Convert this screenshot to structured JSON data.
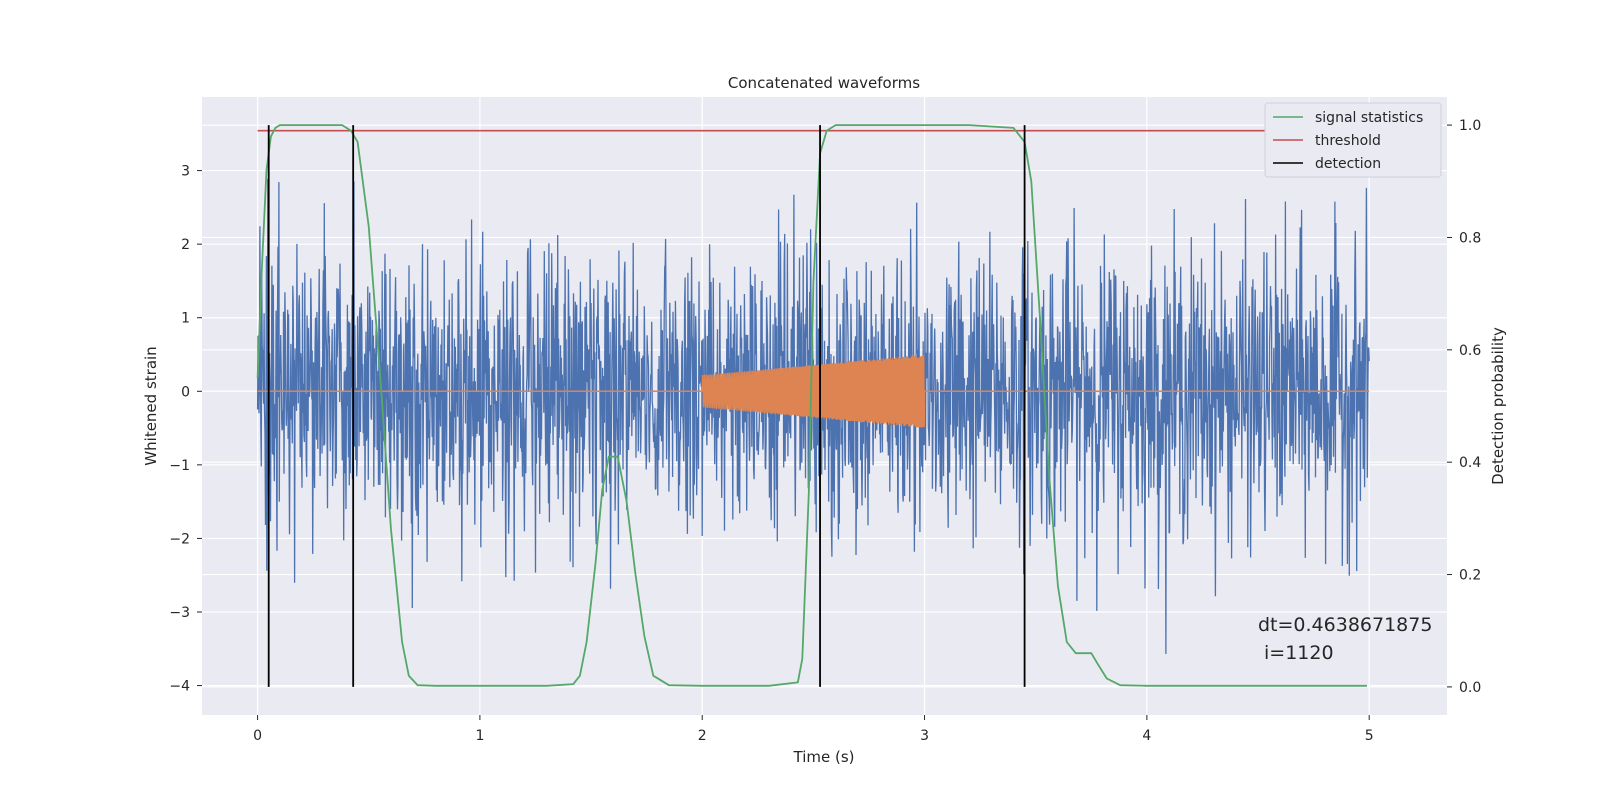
{
  "chart_data": {
    "type": "line",
    "title": "Concatenated waveforms",
    "xlabel": "Time (s)",
    "ylabel": "Whitened strain",
    "y2label": "Detection probability",
    "xlim": [
      -0.25,
      5.35
    ],
    "ylim": [
      -4.4,
      4.0
    ],
    "y2lim": [
      -0.05,
      1.05
    ],
    "xticks": [
      0,
      1,
      2,
      3,
      4,
      5
    ],
    "yticks": [
      -4,
      -3,
      -2,
      -1,
      0,
      1,
      2,
      3
    ],
    "y2ticks": [
      0.0,
      0.2,
      0.4,
      0.6,
      0.8,
      1.0
    ],
    "grid": true,
    "legend_position": "upper-right",
    "colors": {
      "background": "#eaeaf2",
      "grid": "#ffffff",
      "noise": "#4c72b0",
      "template": "#dd8452",
      "signal": "#55a868",
      "threshold": "#c44e52",
      "detection": "#000000"
    },
    "series": [
      {
        "name": "",
        "axis": "left",
        "role": "whitened-noise",
        "x_range": [
          0,
          5
        ],
        "typical_range": [
          -1.2,
          1.5
        ],
        "peak_range": [
          -4.0,
          3.6
        ]
      },
      {
        "name": "",
        "axis": "left",
        "role": "injected-chirp",
        "x_range": [
          2.0,
          3.0
        ],
        "amplitude_start": 0.22,
        "amplitude_end": 0.5,
        "baseline": 0
      },
      {
        "name": "signal statistics",
        "axis": "right",
        "x": [
          0,
          0.02,
          0.04,
          0.06,
          0.08,
          0.1,
          0.15,
          0.2,
          0.3,
          0.38,
          0.42,
          0.45,
          0.5,
          0.55,
          0.6,
          0.65,
          0.68,
          0.72,
          0.8,
          1.0,
          1.3,
          1.42,
          1.45,
          1.48,
          1.52,
          1.55,
          1.58,
          1.62,
          1.66,
          1.7,
          1.74,
          1.78,
          1.85,
          2.0,
          2.3,
          2.43,
          2.45,
          2.48,
          2.5,
          2.53,
          2.56,
          2.6,
          2.8,
          3.2,
          3.4,
          3.45,
          3.48,
          3.52,
          3.56,
          3.6,
          3.64,
          3.68,
          3.72,
          3.75,
          3.78,
          3.82,
          3.88,
          4.0,
          4.5,
          4.99
        ],
        "y": [
          0.55,
          0.75,
          0.92,
          0.98,
          0.995,
          1.0,
          1.0,
          1.0,
          1.0,
          1.0,
          0.99,
          0.97,
          0.82,
          0.56,
          0.28,
          0.08,
          0.02,
          0.003,
          0.002,
          0.002,
          0.002,
          0.005,
          0.02,
          0.08,
          0.22,
          0.35,
          0.41,
          0.41,
          0.33,
          0.2,
          0.09,
          0.02,
          0.003,
          0.002,
          0.002,
          0.008,
          0.05,
          0.35,
          0.72,
          0.95,
          0.99,
          1.0,
          1.0,
          1.0,
          0.995,
          0.97,
          0.9,
          0.65,
          0.38,
          0.18,
          0.08,
          0.06,
          0.06,
          0.06,
          0.04,
          0.015,
          0.003,
          0.002,
          0.002,
          0.002
        ]
      },
      {
        "name": "threshold",
        "axis": "right",
        "x": [
          0,
          5
        ],
        "y": [
          0.99,
          0.99
        ]
      },
      {
        "name": "detection",
        "axis": "right",
        "type": "vlines",
        "x": [
          0.05,
          0.43,
          2.53,
          3.45
        ],
        "y_range": [
          0,
          1.0
        ]
      }
    ],
    "annotations": [
      "dt=0.4638671875",
      "i=1120"
    ]
  }
}
